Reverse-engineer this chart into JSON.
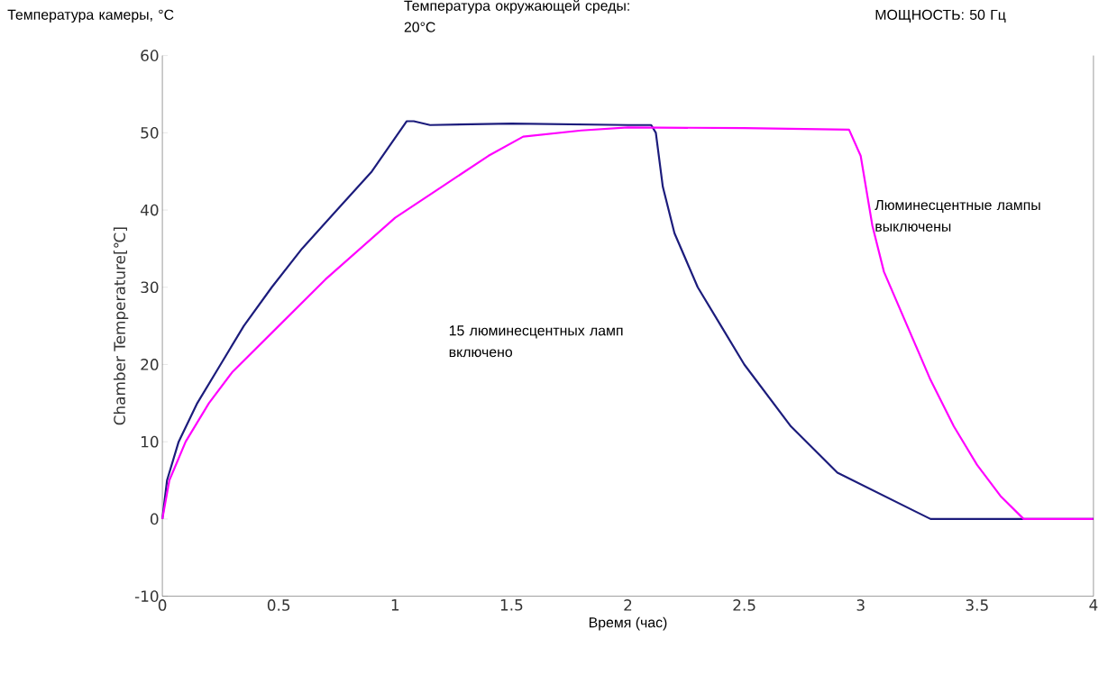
{
  "chart_data": {
    "type": "line",
    "xlabel": "Время (час)",
    "ylabel": "Chamber Temperature[℃]",
    "annotations": [
      "Температура камеры, °C",
      "Температура окружающей среды: 20°C",
      "МОЩНОСТЬ: 50 Гц",
      "15 люминесцентных ламп включено",
      "Люминесцентные лампы выключены"
    ],
    "xlim": [
      0,
      4
    ],
    "ylim": [
      -10,
      60
    ],
    "xticks": [
      0,
      0.5,
      1,
      1.5,
      2,
      2.5,
      3,
      3.5,
      4
    ],
    "yticks": [
      -10,
      0,
      10,
      20,
      30,
      40,
      50,
      60
    ],
    "grid": false,
    "marker": "none",
    "line_style": "solid",
    "series": [
      {
        "color": "#1c1c7c",
        "x": [
          0,
          0.02,
          0.07,
          0.15,
          0.25,
          0.35,
          0.47,
          0.6,
          0.75,
          0.9,
          1.05,
          1.08,
          1.15,
          1.5,
          2.0,
          2.1,
          2.12,
          2.15,
          2.2,
          2.3,
          2.4,
          2.5,
          2.6,
          2.7,
          2.8,
          2.9,
          3.0,
          3.1,
          3.2,
          3.3,
          4.0
        ],
        "values": [
          0,
          5,
          10,
          15,
          20,
          25,
          30,
          35,
          40,
          45,
          51.5,
          51.5,
          51,
          51.2,
          51,
          51,
          50,
          43,
          37,
          30,
          25,
          20,
          16,
          12,
          9,
          6,
          4.5,
          3,
          1.5,
          0,
          0
        ]
      },
      {
        "color": "#ff00ff",
        "x": [
          0,
          0.03,
          0.1,
          0.2,
          0.3,
          0.5,
          0.7,
          1.0,
          1.2,
          1.4,
          1.55,
          1.8,
          2.0,
          2.5,
          2.95,
          3.0,
          3.05,
          3.1,
          3.2,
          3.3,
          3.4,
          3.5,
          3.6,
          3.7,
          4.0
        ],
        "values": [
          0,
          5,
          10,
          15,
          19,
          25,
          31,
          39,
          43,
          47,
          49.5,
          50.3,
          50.7,
          50.6,
          50.4,
          47,
          38,
          32,
          25,
          18,
          12,
          7,
          3,
          0,
          0
        ]
      }
    ]
  }
}
